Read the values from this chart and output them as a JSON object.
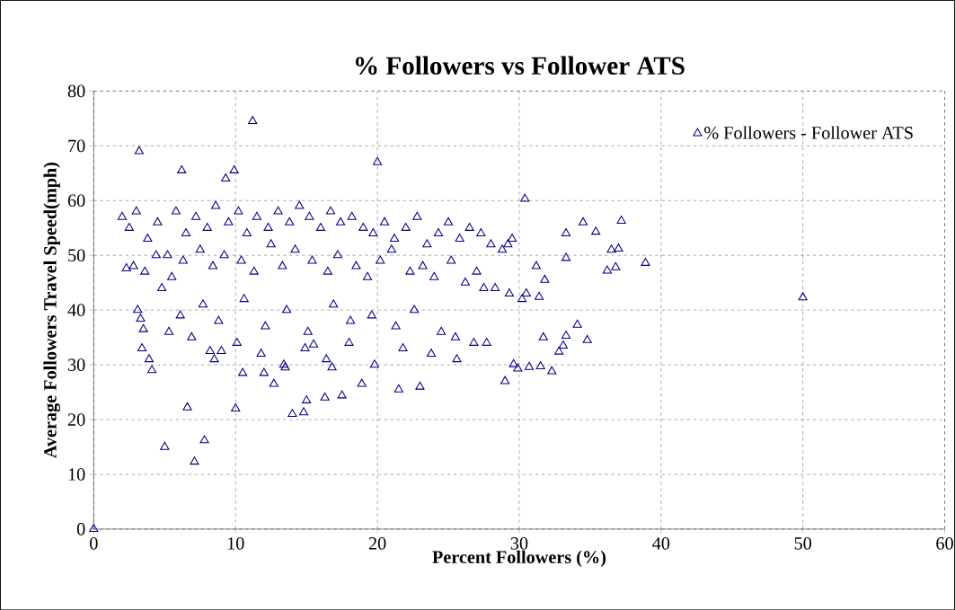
{
  "chart_data": {
    "type": "scatter",
    "title": "% Followers vs Follower ATS",
    "xlabel": "Percent Followers (%)",
    "ylabel": "Average Followers Travel Speed(mph)",
    "xlim": [
      0,
      60
    ],
    "ylim": [
      0,
      80
    ],
    "xticks": [
      0,
      10,
      20,
      30,
      40,
      50,
      60
    ],
    "yticks": [
      0,
      10,
      20,
      30,
      40,
      50,
      60,
      70,
      80
    ],
    "grid": true,
    "legend": "top right",
    "marker": "triangle",
    "series": [
      {
        "name": "% Followers - Follower ATS",
        "color": "#000080",
        "x": [
          0,
          11.2,
          3.2,
          20,
          5,
          7.1,
          7.8,
          6.6,
          10,
          14,
          14.8,
          15,
          16.3,
          17.5,
          18.9,
          21.5,
          23,
          50,
          38.9,
          37.2,
          36.5,
          37,
          36.2,
          36.8,
          35.4,
          34.5,
          33.3,
          33.3,
          34.1,
          34.8,
          33.1,
          33.3,
          32.3,
          31.5,
          30.7,
          29.9,
          31.7,
          32.8,
          31.4,
          31.8,
          30.4,
          29,
          29.6,
          2,
          2.3,
          3.3,
          3.5,
          3.9,
          4.1,
          6.2,
          9.9,
          9.3,
          10.5,
          12,
          13.5,
          12.7,
          8.2,
          9,
          15.5,
          16.8,
          2.5,
          3,
          3.8,
          4.5,
          5.2,
          5.8,
          6.5,
          7.2,
          8,
          8.6,
          9.5,
          10.2,
          10.8,
          11.5,
          12.3,
          13,
          13.8,
          14.5,
          15.2,
          16,
          16.7,
          17.4,
          18.2,
          19,
          19.7,
          20.5,
          21.2,
          22,
          22.8,
          23.5,
          24.3,
          25,
          25.8,
          26.5,
          27.3,
          28,
          28.8,
          29.5,
          2.8,
          3.6,
          4.4,
          5.5,
          6.3,
          7.5,
          8.4,
          9.2,
          10.4,
          11.3,
          12.5,
          13.3,
          14.2,
          15.4,
          16.5,
          17.2,
          18.5,
          19.3,
          20.2,
          21,
          22.3,
          23.2,
          24,
          25.2,
          26.2,
          27,
          28.3,
          29.3,
          30.2,
          3.1,
          4.8,
          6.1,
          7.7,
          8.8,
          10.6,
          12.1,
          13.6,
          15.1,
          16.9,
          18.1,
          19.6,
          21.3,
          22.6,
          24.5,
          25.5,
          26.8,
          27.7,
          3.4,
          5.3,
          6.9,
          8.5,
          10.1,
          11.8,
          13.4,
          14.9,
          16.4,
          18,
          19.8,
          21.8,
          23.8,
          25.6,
          27.5,
          29.2,
          30.5,
          31.2
        ],
        "values": [
          0,
          74.5,
          69,
          67,
          15,
          12.3,
          16.2,
          22.2,
          22,
          21,
          21.3,
          23.5,
          24,
          24.4,
          26.5,
          25.5,
          26,
          42.3,
          48.6,
          56.3,
          51,
          51.2,
          47.2,
          47.8,
          54.3,
          56,
          54,
          49.5,
          37.3,
          34.5,
          33.5,
          35.3,
          28.8,
          29.7,
          29.6,
          29.3,
          35,
          32.4,
          42.4,
          45.5,
          60.3,
          27,
          30.1,
          57,
          47.6,
          38.4,
          36.5,
          31,
          29,
          65.5,
          65.5,
          64,
          28.5,
          28.5,
          29.5,
          26.5,
          32.5,
          32.5,
          33.7,
          29.5,
          55,
          58,
          53,
          56,
          50,
          58,
          54,
          57,
          55,
          59,
          56,
          58,
          54,
          57,
          55,
          58,
          56,
          59,
          57,
          55,
          58,
          56,
          57,
          55,
          54,
          56,
          53,
          55,
          57,
          52,
          54,
          56,
          53,
          55,
          54,
          52,
          51,
          53,
          48,
          47,
          50,
          46,
          49,
          51,
          48,
          50,
          49,
          47,
          52,
          48,
          51,
          49,
          47,
          50,
          48,
          46,
          49,
          51,
          47,
          48,
          46,
          49,
          45,
          47,
          44,
          43,
          42,
          40,
          44,
          39,
          41,
          38,
          42,
          37,
          40,
          36,
          41,
          38,
          39,
          37,
          40,
          36,
          35,
          34,
          34,
          33,
          36,
          35,
          31,
          34,
          32,
          30,
          33,
          31,
          34,
          30,
          33,
          32,
          31,
          44,
          52,
          43,
          48
        ]
      }
    ]
  }
}
